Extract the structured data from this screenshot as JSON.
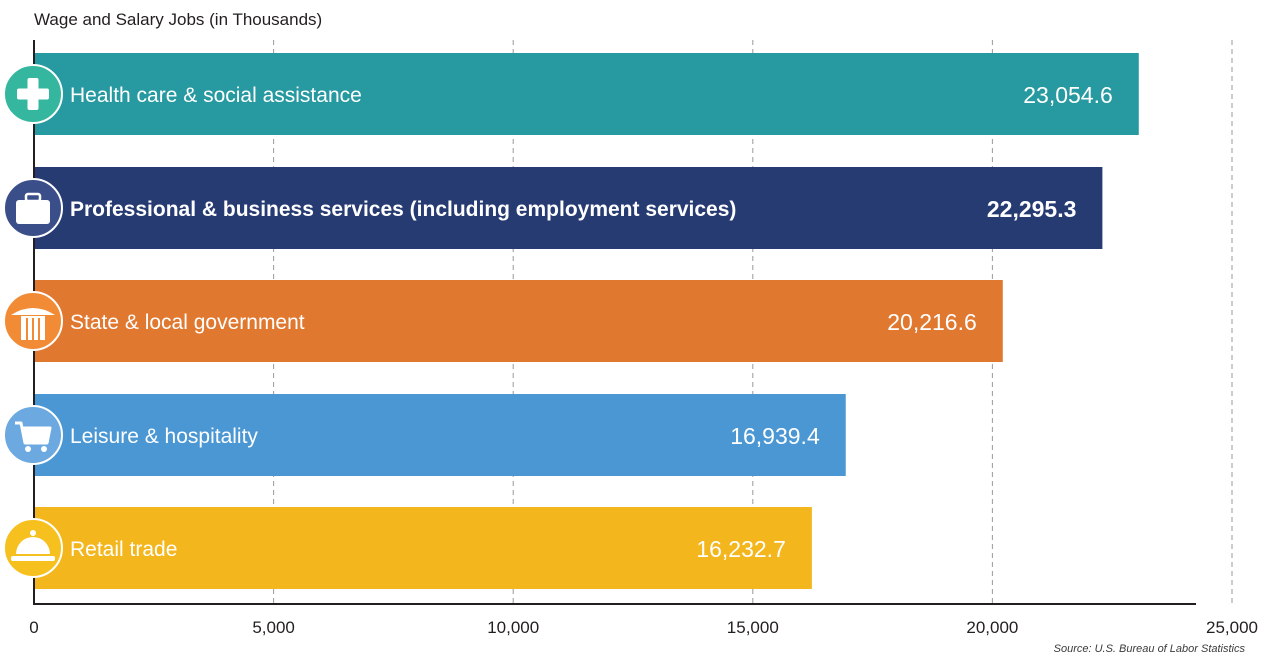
{
  "chart_data": {
    "type": "bar",
    "orientation": "horizontal",
    "title": "Wage and Salary Jobs (in Thousands)",
    "xlabel": "",
    "ylabel": "",
    "xlim": [
      0,
      25000
    ],
    "x_ticks": [
      0,
      5000,
      10000,
      15000,
      20000,
      25000
    ],
    "x_tick_labels": [
      "0",
      "5,000",
      "10,000",
      "15,000",
      "20,000",
      "25,000"
    ],
    "grid": "vertical dashed",
    "legend": "none",
    "categories": [
      "Health care & social assistance",
      "Professional & business services (including employment services)",
      "State & local government",
      "Leisure & hospitality",
      "Retail trade"
    ],
    "values": [
      23054.6,
      22295.3,
      20216.6,
      16939.4,
      16232.7
    ],
    "value_labels": [
      "23,054.6",
      "22,295.3",
      "20,216.6",
      "16,939.4",
      "16,232.7"
    ],
    "colors": [
      "#2799a0",
      "#273b73",
      "#e07830",
      "#4a97d3",
      "#f3b61c"
    ],
    "icon_colors": [
      "#34b79e",
      "#3a4f8a",
      "#f28b35",
      "#6ba9e0",
      "#f6c01e"
    ],
    "icons": [
      "medical-cross-icon",
      "briefcase-icon",
      "column-pillar-icon",
      "shopping-cart-icon",
      "service-bell-icon"
    ],
    "highlighted": [
      false,
      true,
      false,
      false,
      false
    ]
  },
  "source": "Source: U.S. Bureau of Labor Statistics"
}
